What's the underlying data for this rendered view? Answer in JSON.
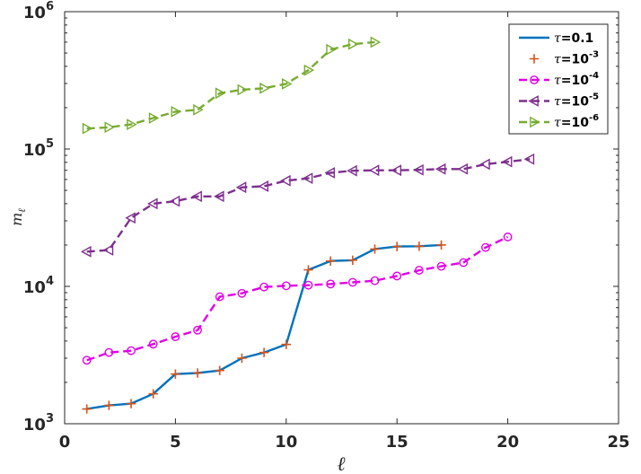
{
  "chart_data": {
    "type": "line",
    "xlabel": "ℓ",
    "ylabel_main": "m",
    "ylabel_sub": "ℓ",
    "xlim": [
      0,
      25
    ],
    "ylim": [
      1000,
      1000000
    ],
    "yscale": "log",
    "grid": false,
    "legend_position": "top-right",
    "x_ticks": [
      {
        "value": 0,
        "label": "0"
      },
      {
        "value": 5,
        "label": "5"
      },
      {
        "value": 10,
        "label": "10"
      },
      {
        "value": 15,
        "label": "15"
      },
      {
        "value": 20,
        "label": "20"
      },
      {
        "value": 25,
        "label": "25"
      }
    ],
    "y_ticks": [
      {
        "value": 1000,
        "base": "10",
        "exp": "3"
      },
      {
        "value": 10000,
        "base": "10",
        "exp": "4"
      },
      {
        "value": 100000,
        "base": "10",
        "exp": "5"
      },
      {
        "value": 1000000,
        "base": "10",
        "exp": "6"
      }
    ],
    "series": [
      {
        "legend_tau": "τ",
        "legend_eq": "=0.1",
        "legend_exp": "",
        "color": "#0072BD",
        "dash": "solid",
        "marker": "none",
        "x": [
          1,
          2,
          3,
          4,
          5,
          6,
          7,
          8,
          9,
          10,
          11,
          12,
          13,
          14,
          15,
          16,
          17
        ],
        "values": [
          1280,
          1360,
          1400,
          1650,
          2300,
          2340,
          2440,
          3000,
          3300,
          3780,
          13200,
          15300,
          15500,
          18700,
          19500,
          19600,
          20000
        ]
      },
      {
        "legend_tau": "τ",
        "legend_eq": "=10",
        "legend_exp": "-3",
        "color": "#D95319",
        "dash": "none",
        "marker": "plus",
        "x": [
          1,
          2,
          3,
          4,
          5,
          6,
          7,
          8,
          9,
          10,
          11,
          12,
          13,
          14,
          15,
          16,
          17
        ],
        "values": [
          1280,
          1360,
          1400,
          1650,
          2300,
          2340,
          2440,
          3000,
          3300,
          3780,
          13200,
          15300,
          15500,
          18700,
          19500,
          19600,
          20000
        ]
      },
      {
        "legend_tau": "τ",
        "legend_eq": "=10",
        "legend_exp": "-4",
        "color": "#E200E6",
        "dash": "dash",
        "marker": "circle",
        "x": [
          1,
          2,
          3,
          4,
          5,
          6,
          7,
          8,
          9,
          10,
          11,
          12,
          13,
          14,
          15,
          16,
          17,
          18,
          19,
          20
        ],
        "values": [
          2900,
          3300,
          3400,
          3800,
          4300,
          4800,
          8400,
          8900,
          9900,
          10100,
          10200,
          10400,
          10700,
          11000,
          11900,
          13100,
          14000,
          14900,
          19200,
          22900
        ]
      },
      {
        "legend_tau": "τ",
        "legend_eq": "=10",
        "legend_exp": "-5",
        "color": "#7E2F8E",
        "dash": "dash",
        "marker": "triangle-left",
        "x": [
          1,
          2,
          3,
          4,
          5,
          6,
          7,
          8,
          9,
          10,
          11,
          12,
          13,
          14,
          15,
          16,
          17,
          18,
          19,
          20,
          21
        ],
        "values": [
          17900,
          18400,
          31500,
          40000,
          41700,
          45200,
          45200,
          52600,
          53600,
          58800,
          61200,
          67100,
          69500,
          70000,
          70000,
          70500,
          71500,
          71500,
          77500,
          80800,
          84400
        ]
      },
      {
        "legend_tau": "τ",
        "legend_eq": "=10",
        "legend_exp": "-6",
        "color": "#77AC30",
        "dash": "dash",
        "marker": "triangle-right",
        "x": [
          1,
          2,
          3,
          4,
          5,
          6,
          7,
          8,
          9,
          10,
          11,
          12,
          13,
          14
        ],
        "values": [
          141000,
          144000,
          151000,
          168000,
          187000,
          193000,
          255000,
          270000,
          277000,
          298000,
          375000,
          530000,
          580000,
          600000
        ]
      }
    ]
  }
}
